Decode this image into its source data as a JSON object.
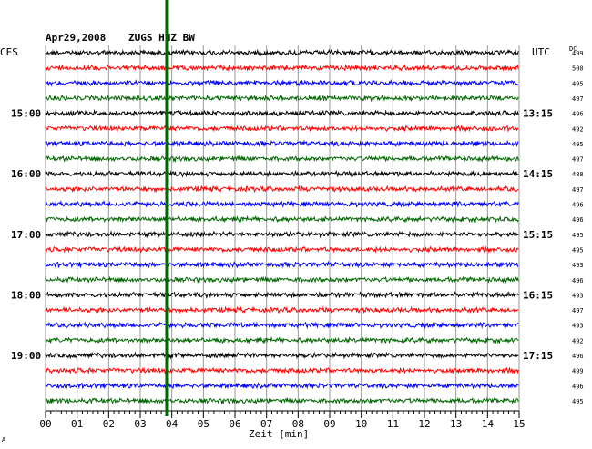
{
  "header": {
    "date": "Apr29,2008",
    "station": "ZUGS HHZ BW",
    "left_tz": "CES",
    "right_tz": "UTC",
    "dc_label": "DC"
  },
  "chart_data": {
    "type": "line",
    "title": "Apr29,2008   ZUGS HHZ BW",
    "xlabel": "Zeit [min]",
    "xlim": [
      0,
      15
    ],
    "x_ticks": [
      "00",
      "01",
      "02",
      "03",
      "04",
      "05",
      "06",
      "07",
      "08",
      "09",
      "10",
      "11",
      "12",
      "13",
      "14",
      "15"
    ],
    "left_hour_labels": [
      {
        "row": 4,
        "label": "15:00"
      },
      {
        "row": 8,
        "label": "16:00"
      },
      {
        "row": 12,
        "label": "17:00"
      },
      {
        "row": 16,
        "label": "18:00"
      },
      {
        "row": 20,
        "label": "19:00"
      }
    ],
    "right_hour_labels": [
      {
        "row": 4,
        "label": "13:15"
      },
      {
        "row": 8,
        "label": "14:15"
      },
      {
        "row": 12,
        "label": "15:15"
      },
      {
        "row": 16,
        "label": "16:15"
      },
      {
        "row": 20,
        "label": "17:15"
      }
    ],
    "trace_colors": [
      "#000000",
      "#ff0000",
      "#0000ff",
      "#006600"
    ],
    "dc_values": [
      "499",
      "500",
      "495",
      "497",
      "496",
      "492",
      "495",
      "497",
      "488",
      "497",
      "496",
      "496",
      "495",
      "495",
      "493",
      "496",
      "493",
      "497",
      "493",
      "492",
      "496",
      "499",
      "496",
      "495"
    ],
    "event_marker": {
      "minute": 3.85,
      "color": "#006600"
    },
    "grid": true
  },
  "footer": {
    "corner_mark": "A"
  }
}
